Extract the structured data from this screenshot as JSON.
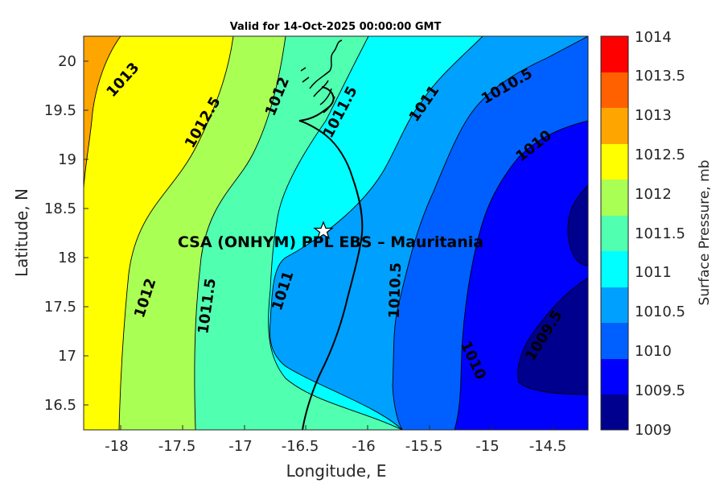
{
  "chart_data": {
    "type": "contour",
    "title": "Valid for 14-Oct-2025 00:00:00 GMT",
    "xlabel": "Longitude, E",
    "ylabel": "Latitude, N",
    "xlim": [
      -18.3,
      -14.3
    ],
    "ylim": [
      16.25,
      20.25
    ],
    "xticks": [
      -18,
      -17.5,
      -17,
      -16.5,
      -16,
      -15.5,
      -15,
      -14.5
    ],
    "xtick_labels": [
      "-18",
      "-17.5",
      "-17",
      "-16.5",
      "-16",
      "-15.5",
      "-15",
      "-14.5"
    ],
    "yticks": [
      16.5,
      17,
      17.5,
      18,
      18.5,
      19,
      19.5,
      20
    ],
    "ytick_labels": [
      "16.5",
      "17",
      "17.5",
      "18",
      "18.5",
      "19",
      "19.5",
      "20"
    ],
    "colorbar": {
      "label": "Surface Pressure, mb",
      "levels": [
        1009,
        1009.5,
        1010,
        1010.5,
        1011,
        1011.5,
        1012,
        1012.5,
        1013,
        1013.5,
        1014
      ],
      "tick_labels": [
        "1009",
        "1009.5",
        "1010",
        "1010.5",
        "1011",
        "1011.5",
        "1012",
        "1012.5",
        "1013",
        "1013.5",
        "1014"
      ],
      "colors": [
        "#00008f",
        "#0000ff",
        "#0060ff",
        "#00a0ff",
        "#00ffff",
        "#50ffb0",
        "#aaff55",
        "#ffff00",
        "#ffa500",
        "#ff6000",
        "#ff0000"
      ]
    },
    "contour_labels": [
      {
        "text": "1013",
        "lon": -17.88,
        "lat": 19.8
      },
      {
        "text": "1012.5",
        "lon": -17.43,
        "lat": 19.38
      },
      {
        "text": "1012",
        "lon": -16.8,
        "lat": 19.65
      },
      {
        "text": "1011.5",
        "lon": -16.17,
        "lat": 19.55
      },
      {
        "text": "1011",
        "lon": -15.6,
        "lat": 19.55
      },
      {
        "text": "1010.5",
        "lon": -14.97,
        "lat": 19.65
      },
      {
        "text": "1010",
        "lon": -14.6,
        "lat": 19.15
      },
      {
        "text": "1012",
        "lon": -17.83,
        "lat": 17.6
      },
      {
        "text": "1011.5",
        "lon": -17.14,
        "lat": 17.57
      },
      {
        "text": "1011",
        "lon": -16.54,
        "lat": 17.68
      },
      {
        "text": "1010.5",
        "lon": -15.85,
        "lat": 17.6
      },
      {
        "text": "1010",
        "lon": -15.18,
        "lat": 16.97
      },
      {
        "text": "1009.5",
        "lon": -14.65,
        "lat": 17.2
      }
    ],
    "site": {
      "name": "CSA (ONHYM) PPL EBS  – Mauritania",
      "lon": -16.33,
      "lat": 18.28,
      "marker": "star"
    }
  }
}
